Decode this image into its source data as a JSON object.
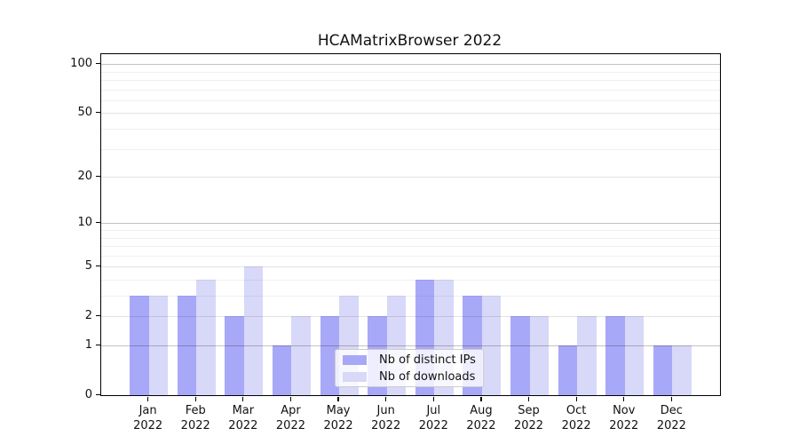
{
  "chart_data": {
    "type": "bar",
    "title": "HCAMatrixBrowser 2022",
    "categories": [
      "Jan 2022",
      "Feb 2022",
      "Mar 2022",
      "Apr 2022",
      "May 2022",
      "Jun 2022",
      "Jul 2022",
      "Aug 2022",
      "Sep 2022",
      "Oct 2022",
      "Nov 2022",
      "Dec 2022"
    ],
    "series": [
      {
        "name": "Nb of distinct IPs",
        "color": "#a8a8f8",
        "values": [
          3,
          3,
          2,
          1,
          2,
          2,
          4,
          3,
          2,
          1,
          2,
          1
        ]
      },
      {
        "name": "Nb of downloads",
        "color": "#d8d8f8",
        "values": [
          3,
          4,
          5,
          2,
          3,
          3,
          4,
          3,
          2,
          2,
          2,
          1
        ]
      }
    ],
    "xlabel": "",
    "ylabel": "",
    "y_scale": "log10(1+x)",
    "y_ticks": [
      100,
      50,
      20,
      10,
      5,
      2,
      1,
      0
    ],
    "y_minor_ticks": [
      3,
      4,
      6,
      7,
      8,
      9,
      30,
      40,
      60,
      70,
      80,
      90
    ],
    "ylim": [
      0,
      114
    ],
    "grid": "major-and-minor, drawn above bars",
    "legend_position": "lower center"
  }
}
